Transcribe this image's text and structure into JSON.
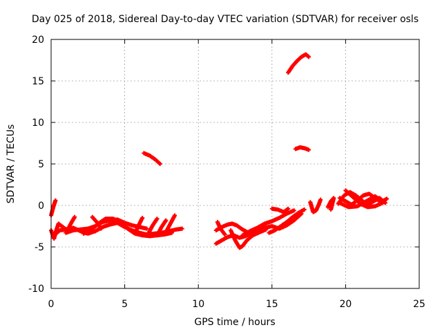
{
  "chart_data": {
    "type": "scatter",
    "title": "Day 025 of 2018, Sidereal Day-to-day VTEC variation (SDTVAR) for receiver osls",
    "xlabel": "GPS time / hours",
    "ylabel": "SDTVAR / TECUs",
    "xlim": [
      0,
      25
    ],
    "ylim": [
      -10,
      20
    ],
    "xticks": [
      0,
      5,
      10,
      15,
      20,
      25
    ],
    "yticks": [
      -10,
      -5,
      0,
      5,
      10,
      15,
      20
    ],
    "grid": true,
    "marker": "plus",
    "color": "#ff0000",
    "series": [
      {
        "name": "SDTVAR",
        "tracks": [
          [
            [
              0.0,
              -1.2
            ],
            [
              0.15,
              -0.2
            ],
            [
              0.3,
              0.6
            ]
          ],
          [
            [
              0.0,
              -3.0
            ],
            [
              0.2,
              -4.0
            ],
            [
              0.35,
              -3.0
            ],
            [
              0.5,
              -2.2
            ],
            [
              0.8,
              -2.6
            ],
            [
              1.1,
              -3.0
            ],
            [
              1.4,
              -2.0
            ],
            [
              1.6,
              -1.4
            ]
          ],
          [
            [
              0.2,
              -3.6
            ],
            [
              0.6,
              -3.0
            ],
            [
              1.0,
              -2.9
            ],
            [
              1.5,
              -2.7
            ],
            [
              2.0,
              -3.1
            ],
            [
              2.5,
              -3.4
            ],
            [
              3.0,
              -3.1
            ],
            [
              3.5,
              -2.6
            ],
            [
              4.0,
              -2.3
            ],
            [
              4.5,
              -2.1
            ],
            [
              5.0,
              -2.6
            ],
            [
              5.5,
              -3.0
            ],
            [
              6.0,
              -3.3
            ],
            [
              6.5,
              -3.5
            ],
            [
              7.0,
              -3.4
            ],
            [
              7.5,
              -3.3
            ],
            [
              8.0,
              -3.1
            ],
            [
              8.5,
              -2.9
            ],
            [
              8.9,
              -2.8
            ]
          ],
          [
            [
              1.0,
              -3.3
            ],
            [
              1.5,
              -3.0
            ],
            [
              2.0,
              -2.9
            ],
            [
              2.5,
              -2.8
            ],
            [
              3.0,
              -2.5
            ],
            [
              3.5,
              -2.0
            ],
            [
              4.0,
              -1.8
            ],
            [
              4.5,
              -1.7
            ],
            [
              5.0,
              -2.1
            ],
            [
              5.5,
              -2.4
            ],
            [
              6.0,
              -2.6
            ],
            [
              6.5,
              -2.8
            ]
          ],
          [
            [
              2.2,
              -3.4
            ],
            [
              2.7,
              -3.0
            ],
            [
              3.2,
              -2.2
            ],
            [
              3.7,
              -1.6
            ],
            [
              4.2,
              -1.6
            ],
            [
              4.7,
              -2.0
            ],
            [
              5.2,
              -2.8
            ],
            [
              5.7,
              -3.4
            ],
            [
              6.2,
              -3.6
            ],
            [
              6.7,
              -3.7
            ],
            [
              7.2,
              -3.6
            ],
            [
              7.7,
              -3.5
            ],
            [
              8.2,
              -3.3
            ]
          ],
          [
            [
              2.8,
              -1.4
            ],
            [
              3.1,
              -2.0
            ],
            [
              3.4,
              -2.8
            ]
          ],
          [
            [
              5.8,
              -3.0
            ],
            [
              6.0,
              -2.2
            ],
            [
              6.2,
              -1.5
            ]
          ],
          [
            [
              6.6,
              -3.4
            ],
            [
              6.9,
              -2.4
            ],
            [
              7.2,
              -1.6
            ]
          ],
          [
            [
              7.2,
              -3.6
            ],
            [
              7.5,
              -2.6
            ],
            [
              7.8,
              -1.8
            ]
          ],
          [
            [
              7.8,
              -3.2
            ],
            [
              8.1,
              -2.2
            ],
            [
              8.4,
              -1.2
            ]
          ],
          [
            [
              6.3,
              6.3
            ],
            [
              6.7,
              6.0
            ],
            [
              7.1,
              5.5
            ],
            [
              7.4,
              5.0
            ]
          ],
          [
            [
              11.2,
              -3.0
            ],
            [
              11.6,
              -2.6
            ],
            [
              12.0,
              -2.3
            ],
            [
              12.3,
              -2.2
            ],
            [
              12.6,
              -2.4
            ],
            [
              13.0,
              -2.9
            ],
            [
              13.4,
              -3.3
            ],
            [
              13.8,
              -3.5
            ]
          ],
          [
            [
              11.2,
              -4.6
            ],
            [
              11.6,
              -4.2
            ],
            [
              12.0,
              -3.8
            ],
            [
              12.4,
              -3.6
            ],
            [
              12.8,
              -3.9
            ],
            [
              13.2,
              -3.7
            ],
            [
              13.6,
              -3.3
            ],
            [
              14.0,
              -3.0
            ],
            [
              14.5,
              -2.7
            ],
            [
              15.0,
              -2.5
            ],
            [
              15.5,
              -2.8
            ],
            [
              16.0,
              -2.4
            ],
            [
              16.5,
              -1.8
            ],
            [
              17.0,
              -1.0
            ]
          ],
          [
            [
              11.3,
              -2.0
            ],
            [
              11.5,
              -2.8
            ],
            [
              11.8,
              -3.5
            ]
          ],
          [
            [
              12.2,
              -3.0
            ],
            [
              12.5,
              -4.2
            ],
            [
              12.8,
              -5.1
            ],
            [
              13.0,
              -4.9
            ],
            [
              13.3,
              -4.2
            ],
            [
              13.7,
              -3.6
            ],
            [
              14.2,
              -3.2
            ],
            [
              14.6,
              -2.9
            ]
          ],
          [
            [
              13.0,
              -3.6
            ],
            [
              13.5,
              -3.1
            ],
            [
              14.0,
              -2.7
            ],
            [
              14.5,
              -2.2
            ],
            [
              15.0,
              -1.9
            ],
            [
              15.5,
              -1.5
            ],
            [
              16.0,
              -1.0
            ],
            [
              16.5,
              -0.6
            ]
          ],
          [
            [
              14.8,
              -3.3
            ],
            [
              15.2,
              -3.0
            ],
            [
              15.6,
              -2.5
            ],
            [
              16.0,
              -2.0
            ],
            [
              16.4,
              -1.4
            ],
            [
              16.8,
              -0.9
            ],
            [
              17.2,
              -0.5
            ]
          ],
          [
            [
              15.0,
              -0.4
            ],
            [
              15.4,
              -0.5
            ],
            [
              15.8,
              -0.8
            ],
            [
              16.1,
              -0.4
            ]
          ],
          [
            [
              16.1,
              16.0
            ],
            [
              16.4,
              16.8
            ],
            [
              16.7,
              17.4
            ],
            [
              17.0,
              17.9
            ],
            [
              17.3,
              18.2
            ],
            [
              17.5,
              17.9
            ]
          ],
          [
            [
              16.6,
              6.8
            ],
            [
              16.9,
              7.0
            ],
            [
              17.2,
              6.9
            ],
            [
              17.5,
              6.7
            ]
          ],
          [
            [
              17.6,
              0.4
            ],
            [
              17.8,
              -0.8
            ],
            [
              18.0,
              -0.6
            ],
            [
              18.2,
              0.2
            ],
            [
              18.3,
              0.7
            ]
          ],
          [
            [
              18.8,
              -0.2
            ],
            [
              19.0,
              0.5
            ],
            [
              19.2,
              0.9
            ],
            [
              19.0,
              -0.5
            ]
          ],
          [
            [
              19.5,
              0.2
            ],
            [
              19.9,
              1.2
            ],
            [
              20.3,
              1.6
            ],
            [
              20.7,
              1.2
            ],
            [
              21.1,
              0.6
            ],
            [
              21.5,
              0.1
            ],
            [
              21.9,
              0.5
            ],
            [
              22.3,
              0.9
            ],
            [
              22.7,
              0.3
            ]
          ],
          [
            [
              19.6,
              0.9
            ],
            [
              20.0,
              0.5
            ],
            [
              20.4,
              0.1
            ],
            [
              20.8,
              0.6
            ],
            [
              21.2,
              1.2
            ],
            [
              21.6,
              1.4
            ],
            [
              22.0,
              0.9
            ],
            [
              22.4,
              0.4
            ],
            [
              22.8,
              0.8
            ]
          ],
          [
            [
              20.0,
              1.8
            ],
            [
              20.5,
              1.0
            ],
            [
              21.0,
              0.2
            ],
            [
              21.5,
              -0.2
            ],
            [
              22.0,
              -0.1
            ],
            [
              22.5,
              0.3
            ]
          ],
          [
            [
              19.6,
              0.3
            ],
            [
              20.2,
              -0.2
            ],
            [
              20.8,
              -0.1
            ],
            [
              21.4,
              0.5
            ],
            [
              22.0,
              1.1
            ],
            [
              22.6,
              0.4
            ]
          ]
        ]
      }
    ]
  }
}
